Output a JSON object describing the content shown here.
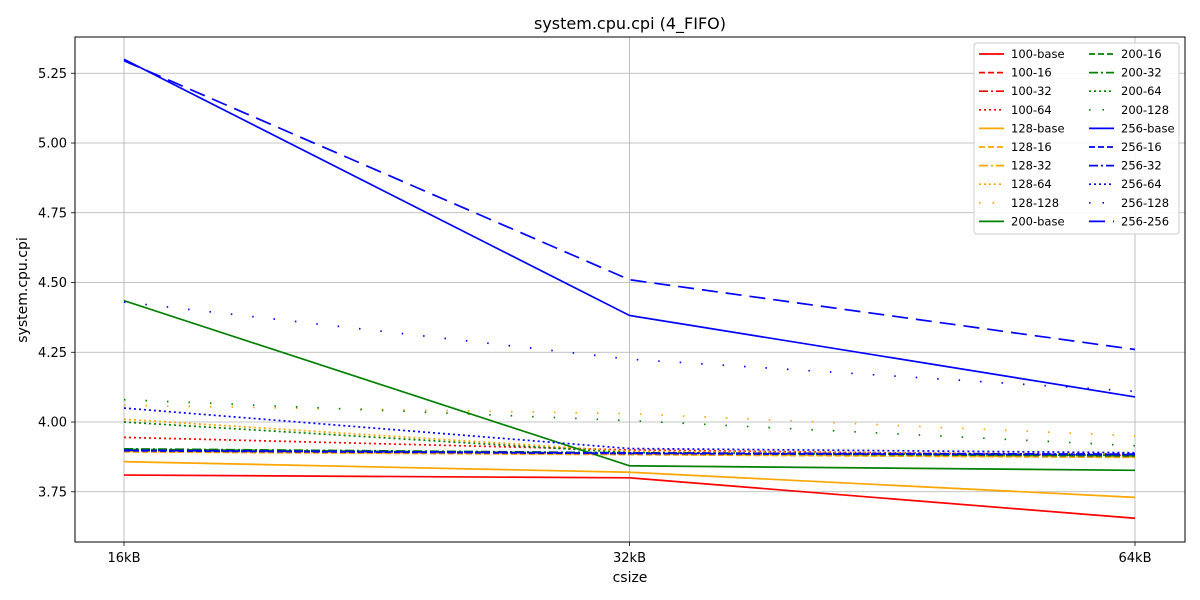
{
  "chart_data": {
    "type": "line",
    "title": "system.cpu.cpi (4_FIFO)",
    "xlabel": "csize",
    "ylabel": "system.cpu.cpi",
    "categories": [
      "16kB",
      "32kB",
      "64kB"
    ],
    "ylim": [
      3.57,
      5.38
    ],
    "yticks": [
      "3.75",
      "4.00",
      "4.25",
      "4.50",
      "4.75",
      "5.00",
      "5.25"
    ],
    "ytick_values": [
      3.75,
      4.0,
      4.25,
      4.5,
      4.75,
      5.0,
      5.25
    ],
    "grid": true,
    "legend_position": "top-right",
    "series": [
      {
        "name": "100-base",
        "color": "#ff0000",
        "style": "solid",
        "values": [
          3.81,
          3.8,
          3.655
        ]
      },
      {
        "name": "100-16",
        "color": "#ff0000",
        "style": "dashed",
        "values": [
          3.895,
          3.885,
          3.875
        ]
      },
      {
        "name": "100-32",
        "color": "#ff0000",
        "style": "dashdot",
        "values": [
          3.897,
          3.887,
          3.877
        ]
      },
      {
        "name": "100-64",
        "color": "#ff0000",
        "style": "dotted",
        "values": [
          3.945,
          3.9,
          3.88
        ]
      },
      {
        "name": "128-base",
        "color": "#ffa500",
        "style": "solid",
        "values": [
          3.858,
          3.82,
          3.73
        ]
      },
      {
        "name": "128-16",
        "color": "#ffa500",
        "style": "dashed",
        "values": [
          3.893,
          3.883,
          3.873
        ]
      },
      {
        "name": "128-32",
        "color": "#ffa500",
        "style": "dashdot",
        "values": [
          3.895,
          3.885,
          3.875
        ]
      },
      {
        "name": "128-64",
        "color": "#ffa500",
        "style": "dotted",
        "values": [
          4.01,
          3.895,
          3.885
        ]
      },
      {
        "name": "128-128",
        "color": "#ffa500",
        "style": "sparse",
        "values": [
          4.06,
          4.03,
          3.95
        ]
      },
      {
        "name": "200-base",
        "color": "#008000",
        "style": "solid",
        "values": [
          4.435,
          3.843,
          3.827
        ]
      },
      {
        "name": "200-16",
        "color": "#008000",
        "style": "dashed",
        "values": [
          3.902,
          3.888,
          3.878
        ]
      },
      {
        "name": "200-32",
        "color": "#008000",
        "style": "dashdot",
        "values": [
          3.904,
          3.89,
          3.88
        ]
      },
      {
        "name": "200-64",
        "color": "#008000",
        "style": "dotted",
        "values": [
          4.0,
          3.89,
          3.88
        ]
      },
      {
        "name": "200-128",
        "color": "#008000",
        "style": "sparse",
        "values": [
          4.08,
          4.005,
          3.915
        ]
      },
      {
        "name": "256-base",
        "color": "#0000ff",
        "style": "solid",
        "values": [
          5.3,
          4.382,
          4.09
        ]
      },
      {
        "name": "256-16",
        "color": "#0000ff",
        "style": "dashed",
        "values": [
          3.897,
          3.887,
          3.883
        ]
      },
      {
        "name": "256-32",
        "color": "#0000ff",
        "style": "dashdot",
        "values": [
          3.899,
          3.889,
          3.885
        ]
      },
      {
        "name": "256-64",
        "color": "#0000ff",
        "style": "dotted",
        "values": [
          4.05,
          3.905,
          3.89
        ]
      },
      {
        "name": "256-128",
        "color": "#0000ff",
        "style": "sparse",
        "values": [
          4.43,
          4.225,
          4.11
        ]
      },
      {
        "name": "256-256",
        "color": "#0000ff",
        "style": "longdash",
        "values": [
          5.295,
          4.51,
          4.26
        ]
      }
    ]
  }
}
